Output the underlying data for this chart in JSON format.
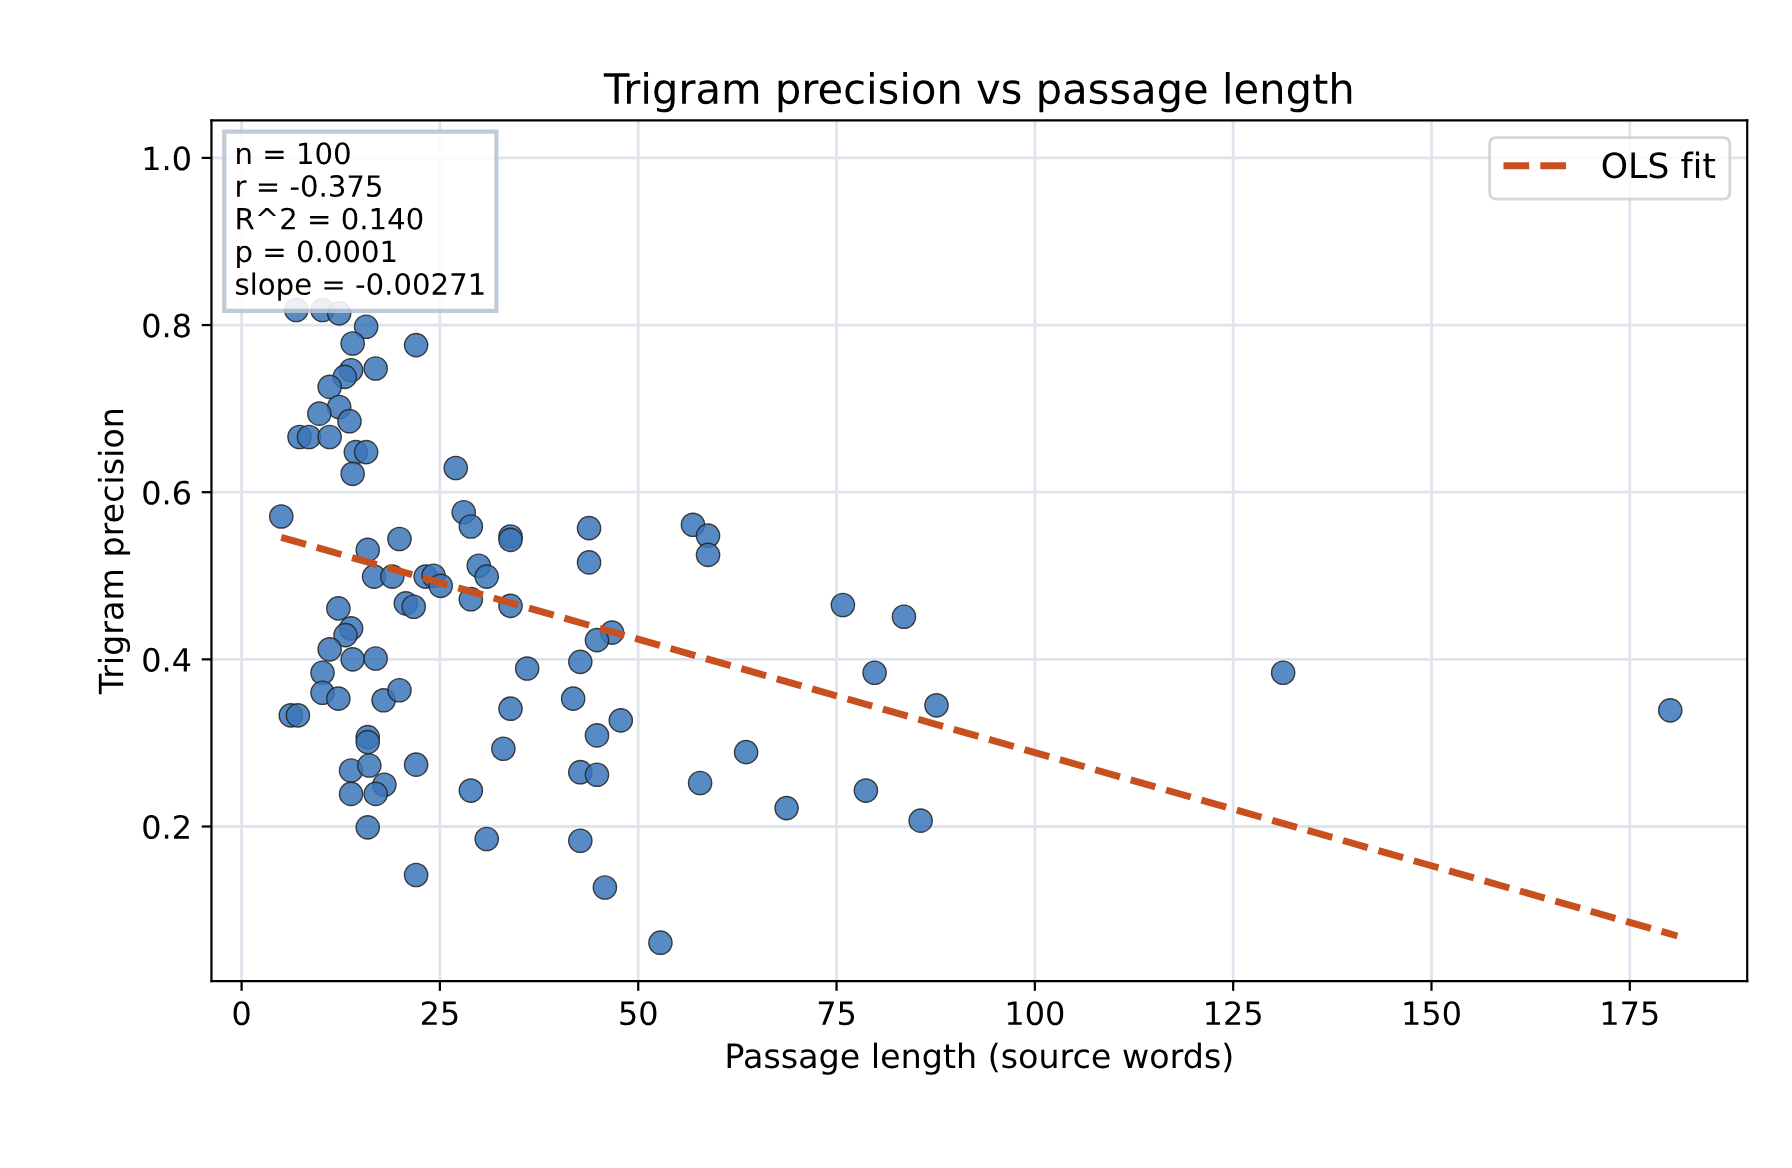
{
  "chart_data": {
    "type": "scatter",
    "title": "Trigram precision vs passage length",
    "xlabel": "Passage length (source words)",
    "ylabel": "Trigram precision",
    "xlim": [
      -3.8,
      189.8
    ],
    "ylim": [
      0.015,
      1.045
    ],
    "xticks": [
      0,
      25,
      50,
      75,
      100,
      125,
      150,
      175
    ],
    "yticks": [
      0.2,
      0.4,
      0.6,
      0.8,
      {
        "value": 1,
        "label": "1.0"
      }
    ],
    "grid": true,
    "legend": "top right",
    "marker": "circle",
    "annotations": [
      "n = 100",
      "r = -0.375",
      "R^2 = 0.140",
      "p = 0.0001",
      "slope = -0.00271"
    ],
    "series": [
      {
        "color": "#3b75b9",
        "x": [
          6.9,
          10.2,
          12.3,
          15.7,
          14.0,
          22.0,
          16.9,
          13.8,
          13.0,
          11.1,
          12.3,
          9.8,
          13.6,
          7.3,
          8.5,
          11.1,
          14.4,
          15.7,
          14.0,
          27.0,
          5.0,
          28.0,
          28.9,
          33.9,
          33.9,
          43.8,
          43.8,
          15.9,
          19.9,
          16.7,
          19.0,
          23.2,
          24.2,
          25.1,
          29.9,
          30.9,
          28.9,
          33.9,
          20.7,
          21.7,
          46.7,
          44.8,
          12.2,
          13.8,
          13.1,
          11.1,
          14.0,
          16.9,
          10.2,
          10.2,
          12.2,
          17.9,
          19.9,
          36.0,
          42.7,
          41.8,
          47.8,
          44.8,
          33.9,
          33.0,
          6.2,
          7.1,
          15.9,
          15.9,
          13.8,
          16.1,
          22.0,
          18.0,
          16.9,
          13.8,
          28.9,
          42.7,
          44.8,
          15.9,
          30.9,
          42.7,
          22.0,
          45.8,
          56.9,
          58.8,
          58.8,
          63.6,
          57.8,
          68.7,
          75.8,
          83.5,
          79.8,
          87.6,
          78.7,
          85.6,
          52.8,
          131.3,
          180.1
        ],
        "values": [
          0.818,
          0.818,
          0.814,
          0.798,
          0.778,
          0.776,
          0.748,
          0.746,
          0.738,
          0.726,
          0.702,
          0.694,
          0.685,
          0.666,
          0.666,
          0.666,
          0.648,
          0.648,
          0.622,
          0.629,
          0.571,
          0.576,
          0.559,
          0.547,
          0.543,
          0.557,
          0.516,
          0.531,
          0.544,
          0.499,
          0.499,
          0.499,
          0.5,
          0.488,
          0.512,
          0.499,
          0.472,
          0.464,
          0.467,
          0.463,
          0.432,
          0.423,
          0.461,
          0.437,
          0.429,
          0.412,
          0.4,
          0.401,
          0.384,
          0.36,
          0.353,
          0.351,
          0.363,
          0.389,
          0.397,
          0.353,
          0.327,
          0.309,
          0.341,
          0.293,
          0.333,
          0.333,
          0.307,
          0.301,
          0.267,
          0.273,
          0.274,
          0.25,
          0.239,
          0.239,
          0.243,
          0.265,
          0.262,
          0.199,
          0.185,
          0.183,
          0.142,
          0.127,
          0.561,
          0.548,
          0.525,
          0.289,
          0.252,
          0.222,
          0.465,
          0.451,
          0.384,
          0.345,
          0.243,
          0.207,
          0.061,
          0.384,
          0.339
        ]
      },
      {
        "type": "line",
        "name": "OLS fit",
        "color": "#c8501e",
        "line_style": "dashed",
        "marker": "none",
        "x": [
          5,
          181
        ],
        "values": [
          0.546,
          0.069
        ]
      }
    ]
  }
}
